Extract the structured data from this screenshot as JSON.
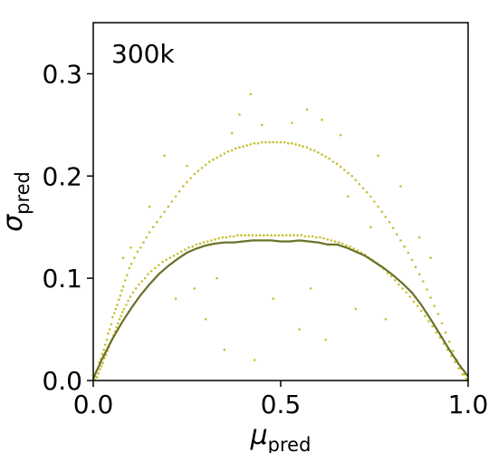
{
  "chart_data": {
    "type": "scatter",
    "title": "",
    "annotation": "300k",
    "xlabel": {
      "symbol": "μ",
      "subscript": "pred"
    },
    "ylabel": {
      "symbol": "σ",
      "subscript": "pred"
    },
    "xlim": [
      0.0,
      1.0
    ],
    "ylim": [
      0.0,
      0.35
    ],
    "xticks": [
      {
        "value": 0.0,
        "label": "0.0"
      },
      {
        "value": 0.5,
        "label": "0.5"
      },
      {
        "value": 1.0,
        "label": "1.0"
      }
    ],
    "yticks": [
      {
        "value": 0.0,
        "label": "0.0"
      },
      {
        "value": 0.1,
        "label": "0.1"
      },
      {
        "value": 0.2,
        "label": "0.2"
      },
      {
        "value": 0.3,
        "label": "0.3"
      }
    ],
    "grid": false,
    "legend": "none",
    "scatter_color": "#c8c032",
    "line_color": "#6b7028",
    "trend_line": {
      "x": [
        0.0,
        0.025,
        0.05,
        0.075,
        0.1,
        0.125,
        0.15,
        0.175,
        0.2,
        0.225,
        0.25,
        0.275,
        0.3,
        0.325,
        0.35,
        0.375,
        0.4,
        0.425,
        0.45,
        0.475,
        0.5,
        0.525,
        0.55,
        0.575,
        0.6,
        0.625,
        0.65,
        0.675,
        0.7,
        0.725,
        0.75,
        0.775,
        0.8,
        0.825,
        0.85,
        0.875,
        0.9,
        0.925,
        0.95,
        0.975,
        1.0
      ],
      "y": [
        0.002,
        0.022,
        0.04,
        0.056,
        0.07,
        0.083,
        0.094,
        0.104,
        0.112,
        0.119,
        0.125,
        0.129,
        0.132,
        0.134,
        0.135,
        0.135,
        0.136,
        0.137,
        0.137,
        0.137,
        0.136,
        0.136,
        0.137,
        0.136,
        0.135,
        0.133,
        0.133,
        0.13,
        0.126,
        0.122,
        0.116,
        0.11,
        0.103,
        0.095,
        0.086,
        0.074,
        0.06,
        0.045,
        0.03,
        0.016,
        0.004
      ]
    },
    "scatter_points": [
      [
        0.004,
        0.001
      ],
      [
        0.006,
        0.004
      ],
      [
        0.008,
        0.009
      ],
      [
        0.01,
        0.003
      ],
      [
        0.012,
        0.012
      ],
      [
        0.014,
        0.007
      ],
      [
        0.016,
        0.018
      ],
      [
        0.018,
        0.011
      ],
      [
        0.02,
        0.021
      ],
      [
        0.022,
        0.014
      ],
      [
        0.024,
        0.026
      ],
      [
        0.026,
        0.017
      ],
      [
        0.028,
        0.03
      ],
      [
        0.03,
        0.022
      ],
      [
        0.032,
        0.035
      ],
      [
        0.034,
        0.025
      ],
      [
        0.036,
        0.04
      ],
      [
        0.038,
        0.029
      ],
      [
        0.04,
        0.046
      ],
      [
        0.042,
        0.033
      ],
      [
        0.044,
        0.05
      ],
      [
        0.046,
        0.037
      ],
      [
        0.048,
        0.055
      ],
      [
        0.05,
        0.04
      ],
      [
        0.052,
        0.062
      ],
      [
        0.054,
        0.044
      ],
      [
        0.056,
        0.066
      ],
      [
        0.058,
        0.048
      ],
      [
        0.06,
        0.07
      ],
      [
        0.062,
        0.052
      ],
      [
        0.064,
        0.074
      ],
      [
        0.066,
        0.056
      ],
      [
        0.068,
        0.079
      ],
      [
        0.07,
        0.06
      ],
      [
        0.072,
        0.083
      ],
      [
        0.074,
        0.063
      ],
      [
        0.076,
        0.088
      ],
      [
        0.078,
        0.067
      ],
      [
        0.08,
        0.092
      ],
      [
        0.082,
        0.07
      ],
      [
        0.085,
        0.098
      ],
      [
        0.088,
        0.074
      ],
      [
        0.09,
        0.103
      ],
      [
        0.093,
        0.078
      ],
      [
        0.096,
        0.11
      ],
      [
        0.099,
        0.082
      ],
      [
        0.102,
        0.114
      ],
      [
        0.106,
        0.086
      ],
      [
        0.11,
        0.12
      ],
      [
        0.114,
        0.09
      ],
      [
        0.118,
        0.126
      ],
      [
        0.122,
        0.094
      ],
      [
        0.126,
        0.13
      ],
      [
        0.13,
        0.097
      ],
      [
        0.134,
        0.135
      ],
      [
        0.138,
        0.1
      ],
      [
        0.142,
        0.14
      ],
      [
        0.146,
        0.104
      ],
      [
        0.15,
        0.145
      ],
      [
        0.155,
        0.107
      ],
      [
        0.16,
        0.15
      ],
      [
        0.165,
        0.11
      ],
      [
        0.17,
        0.155
      ],
      [
        0.175,
        0.113
      ],
      [
        0.18,
        0.16
      ],
      [
        0.185,
        0.116
      ],
      [
        0.19,
        0.165
      ],
      [
        0.195,
        0.118
      ],
      [
        0.2,
        0.17
      ],
      [
        0.205,
        0.12
      ],
      [
        0.21,
        0.175
      ],
      [
        0.215,
        0.122
      ],
      [
        0.22,
        0.18
      ],
      [
        0.225,
        0.124
      ],
      [
        0.23,
        0.185
      ],
      [
        0.235,
        0.126
      ],
      [
        0.24,
        0.19
      ],
      [
        0.245,
        0.128
      ],
      [
        0.25,
        0.194
      ],
      [
        0.255,
        0.13
      ],
      [
        0.26,
        0.198
      ],
      [
        0.265,
        0.131
      ],
      [
        0.27,
        0.202
      ],
      [
        0.275,
        0.133
      ],
      [
        0.28,
        0.205
      ],
      [
        0.285,
        0.134
      ],
      [
        0.29,
        0.208
      ],
      [
        0.295,
        0.135
      ],
      [
        0.3,
        0.211
      ],
      [
        0.305,
        0.136
      ],
      [
        0.31,
        0.214
      ],
      [
        0.315,
        0.137
      ],
      [
        0.32,
        0.216
      ],
      [
        0.325,
        0.138
      ],
      [
        0.33,
        0.218
      ],
      [
        0.335,
        0.139
      ],
      [
        0.34,
        0.22
      ],
      [
        0.345,
        0.14
      ],
      [
        0.35,
        0.222
      ],
      [
        0.355,
        0.14
      ],
      [
        0.36,
        0.224
      ],
      [
        0.365,
        0.141
      ],
      [
        0.37,
        0.225
      ],
      [
        0.375,
        0.141
      ],
      [
        0.38,
        0.227
      ],
      [
        0.385,
        0.142
      ],
      [
        0.39,
        0.228
      ],
      [
        0.395,
        0.142
      ],
      [
        0.4,
        0.229
      ],
      [
        0.405,
        0.142
      ],
      [
        0.41,
        0.23
      ],
      [
        0.415,
        0.142
      ],
      [
        0.42,
        0.231
      ],
      [
        0.425,
        0.142
      ],
      [
        0.43,
        0.232
      ],
      [
        0.435,
        0.142
      ],
      [
        0.44,
        0.232
      ],
      [
        0.445,
        0.142
      ],
      [
        0.45,
        0.233
      ],
      [
        0.455,
        0.142
      ],
      [
        0.46,
        0.233
      ],
      [
        0.465,
        0.142
      ],
      [
        0.47,
        0.233
      ],
      [
        0.475,
        0.142
      ],
      [
        0.48,
        0.233
      ],
      [
        0.485,
        0.142
      ],
      [
        0.49,
        0.233
      ],
      [
        0.495,
        0.142
      ],
      [
        0.5,
        0.233
      ],
      [
        0.505,
        0.142
      ],
      [
        0.51,
        0.233
      ],
      [
        0.515,
        0.142
      ],
      [
        0.52,
        0.232
      ],
      [
        0.525,
        0.142
      ],
      [
        0.53,
        0.232
      ],
      [
        0.535,
        0.142
      ],
      [
        0.54,
        0.231
      ],
      [
        0.545,
        0.142
      ],
      [
        0.55,
        0.23
      ],
      [
        0.555,
        0.142
      ],
      [
        0.56,
        0.229
      ],
      [
        0.565,
        0.141
      ],
      [
        0.57,
        0.228
      ],
      [
        0.575,
        0.141
      ],
      [
        0.58,
        0.226
      ],
      [
        0.585,
        0.141
      ],
      [
        0.59,
        0.225
      ],
      [
        0.595,
        0.14
      ],
      [
        0.6,
        0.223
      ],
      [
        0.605,
        0.14
      ],
      [
        0.61,
        0.221
      ],
      [
        0.615,
        0.139
      ],
      [
        0.62,
        0.219
      ],
      [
        0.625,
        0.138
      ],
      [
        0.63,
        0.217
      ],
      [
        0.635,
        0.137
      ],
      [
        0.64,
        0.214
      ],
      [
        0.645,
        0.136
      ],
      [
        0.65,
        0.212
      ],
      [
        0.655,
        0.135
      ],
      [
        0.66,
        0.209
      ],
      [
        0.665,
        0.134
      ],
      [
        0.67,
        0.206
      ],
      [
        0.675,
        0.132
      ],
      [
        0.68,
        0.203
      ],
      [
        0.685,
        0.131
      ],
      [
        0.69,
        0.2
      ],
      [
        0.695,
        0.129
      ],
      [
        0.7,
        0.196
      ],
      [
        0.705,
        0.127
      ],
      [
        0.71,
        0.192
      ],
      [
        0.715,
        0.125
      ],
      [
        0.72,
        0.188
      ],
      [
        0.725,
        0.123
      ],
      [
        0.73,
        0.184
      ],
      [
        0.735,
        0.12
      ],
      [
        0.74,
        0.18
      ],
      [
        0.745,
        0.118
      ],
      [
        0.75,
        0.175
      ],
      [
        0.755,
        0.115
      ],
      [
        0.76,
        0.17
      ],
      [
        0.765,
        0.112
      ],
      [
        0.77,
        0.165
      ],
      [
        0.775,
        0.109
      ],
      [
        0.78,
        0.16
      ],
      [
        0.785,
        0.105
      ],
      [
        0.79,
        0.155
      ],
      [
        0.795,
        0.102
      ],
      [
        0.8,
        0.149
      ],
      [
        0.805,
        0.098
      ],
      [
        0.81,
        0.143
      ],
      [
        0.815,
        0.094
      ],
      [
        0.82,
        0.137
      ],
      [
        0.825,
        0.09
      ],
      [
        0.83,
        0.131
      ],
      [
        0.835,
        0.086
      ],
      [
        0.84,
        0.125
      ],
      [
        0.845,
        0.082
      ],
      [
        0.85,
        0.118
      ],
      [
        0.855,
        0.077
      ],
      [
        0.86,
        0.111
      ],
      [
        0.865,
        0.073
      ],
      [
        0.87,
        0.104
      ],
      [
        0.875,
        0.068
      ],
      [
        0.88,
        0.097
      ],
      [
        0.885,
        0.063
      ],
      [
        0.89,
        0.089
      ],
      [
        0.895,
        0.058
      ],
      [
        0.9,
        0.081
      ],
      [
        0.905,
        0.053
      ],
      [
        0.91,
        0.073
      ],
      [
        0.915,
        0.047
      ],
      [
        0.92,
        0.065
      ],
      [
        0.925,
        0.042
      ],
      [
        0.93,
        0.056
      ],
      [
        0.935,
        0.036
      ],
      [
        0.94,
        0.047
      ],
      [
        0.945,
        0.03
      ],
      [
        0.95,
        0.038
      ],
      [
        0.955,
        0.024
      ],
      [
        0.96,
        0.029
      ],
      [
        0.965,
        0.018
      ],
      [
        0.97,
        0.02
      ],
      [
        0.975,
        0.012
      ],
      [
        0.98,
        0.012
      ],
      [
        0.985,
        0.006
      ],
      [
        0.99,
        0.006
      ],
      [
        0.995,
        0.002
      ],
      [
        0.999,
        0.001
      ],
      [
        0.42,
        0.28
      ],
      [
        0.39,
        0.26
      ],
      [
        0.57,
        0.265
      ],
      [
        0.61,
        0.255
      ],
      [
        0.37,
        0.242
      ],
      [
        0.45,
        0.25
      ],
      [
        0.53,
        0.252
      ],
      [
        0.66,
        0.24
      ],
      [
        0.19,
        0.22
      ],
      [
        0.25,
        0.21
      ],
      [
        0.76,
        0.22
      ],
      [
        0.82,
        0.19
      ],
      [
        0.15,
        0.17
      ],
      [
        0.87,
        0.14
      ],
      [
        0.9,
        0.12
      ],
      [
        0.1,
        0.13
      ],
      [
        0.08,
        0.12
      ],
      [
        0.35,
        0.03
      ],
      [
        0.43,
        0.02
      ],
      [
        0.62,
        0.04
      ],
      [
        0.55,
        0.05
      ],
      [
        0.3,
        0.06
      ],
      [
        0.7,
        0.07
      ],
      [
        0.48,
        0.08
      ],
      [
        0.27,
        0.09
      ],
      [
        0.78,
        0.06
      ],
      [
        0.33,
        0.1
      ],
      [
        0.58,
        0.09
      ],
      [
        0.22,
        0.08
      ],
      [
        0.74,
        0.15
      ],
      [
        0.68,
        0.18
      ]
    ]
  }
}
